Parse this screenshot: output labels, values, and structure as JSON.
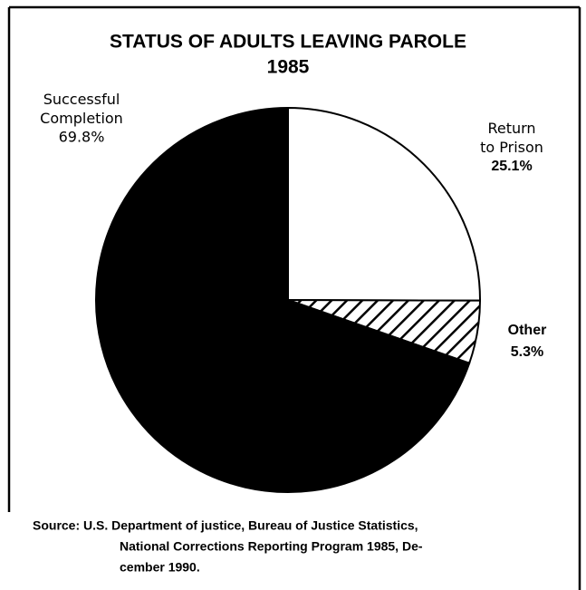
{
  "chart_data": {
    "type": "pie",
    "title": "STATUS OF ADULTS LEAVING PAROLE",
    "subtitle": "1985",
    "categories": [
      "Successful Completion",
      "Return to Prison",
      "Other"
    ],
    "values": [
      69.8,
      25.1,
      5.3
    ],
    "value_labels": [
      "69.8%",
      "25.1%",
      "5.3%"
    ],
    "colors": [
      "#000000",
      "#ffffff",
      "#ffffff"
    ],
    "hatched": [
      false,
      false,
      true
    ],
    "source": [
      "Source: U.S. Department of justice, Bureau of Justice Statistics,",
      "National Corrections Reporting Program 1985, De-",
      "cember 1990."
    ]
  }
}
